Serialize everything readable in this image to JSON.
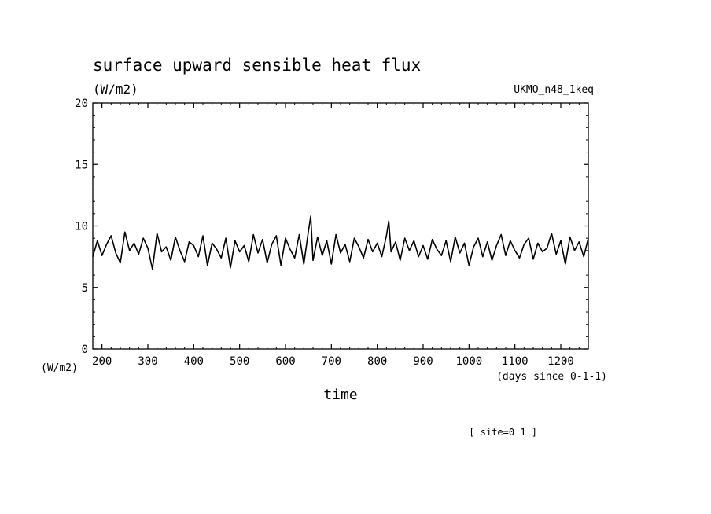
{
  "chart_data": {
    "type": "line",
    "title": "surface upward sensible heat flux",
    "units": "(W/m2)",
    "dataset_label": "UKMO_n48_1keq",
    "ylabel": "(W/m2)",
    "xlabel": "time",
    "x_units": "(days since 0-1-1)",
    "footer": "[ site=0 1 ]",
    "xlim": [
      180,
      1260
    ],
    "ylim": [
      0,
      20
    ],
    "xticks": [
      200,
      300,
      400,
      500,
      600,
      700,
      800,
      900,
      1000,
      1100,
      1200
    ],
    "yticks": [
      0,
      5,
      10,
      15,
      20
    ],
    "line_color": "#000000",
    "series": [
      {
        "x": [
          180,
          190,
          200,
          210,
          220,
          230,
          240,
          250,
          260,
          270,
          280,
          290,
          300,
          310,
          320,
          330,
          340,
          350,
          360,
          370,
          380,
          390,
          400,
          410,
          420,
          430,
          440,
          450,
          460,
          470,
          480,
          490,
          500,
          510,
          520,
          530,
          540,
          550,
          560,
          570,
          580,
          590,
          600,
          610,
          620,
          630,
          640,
          650,
          655,
          660,
          670,
          680,
          690,
          700,
          710,
          720,
          730,
          740,
          750,
          760,
          770,
          780,
          790,
          800,
          810,
          820,
          825,
          830,
          840,
          850,
          860,
          870,
          880,
          890,
          900,
          910,
          920,
          930,
          940,
          950,
          960,
          970,
          980,
          990,
          1000,
          1010,
          1020,
          1030,
          1040,
          1050,
          1060,
          1070,
          1080,
          1090,
          1100,
          1110,
          1120,
          1130,
          1140,
          1150,
          1160,
          1170,
          1180,
          1190,
          1200,
          1210,
          1220,
          1230,
          1240,
          1250,
          1260
        ],
        "y": [
          7.5,
          8.8,
          7.6,
          8.5,
          9.2,
          7.8,
          7.0,
          9.5,
          8.0,
          8.6,
          7.7,
          9.0,
          8.2,
          6.5,
          9.4,
          7.9,
          8.3,
          7.2,
          9.1,
          8.0,
          7.1,
          8.7,
          8.4,
          7.5,
          9.2,
          6.8,
          8.6,
          8.1,
          7.4,
          9.0,
          6.6,
          8.8,
          7.9,
          8.4,
          7.1,
          9.3,
          7.8,
          8.9,
          7.0,
          8.5,
          9.2,
          6.8,
          9.0,
          8.1,
          7.4,
          9.3,
          6.9,
          9.6,
          10.8,
          7.2,
          9.1,
          7.6,
          8.8,
          6.9,
          9.3,
          7.8,
          8.5,
          7.1,
          9.0,
          8.3,
          7.4,
          8.9,
          7.9,
          8.6,
          7.5,
          9.2,
          10.4,
          7.9,
          8.7,
          7.2,
          9.0,
          8.0,
          8.8,
          7.5,
          8.4,
          7.3,
          8.9,
          8.1,
          7.6,
          8.8,
          7.1,
          9.1,
          7.8,
          8.6,
          6.8,
          8.3,
          9.0,
          7.5,
          8.7,
          7.2,
          8.4,
          9.3,
          7.6,
          8.8,
          8.0,
          7.4,
          8.5,
          9.0,
          7.3,
          8.6,
          7.9,
          8.2,
          9.4,
          7.7,
          8.8,
          6.9,
          9.1,
          8.0,
          8.7,
          7.5,
          9.0
        ]
      }
    ]
  }
}
